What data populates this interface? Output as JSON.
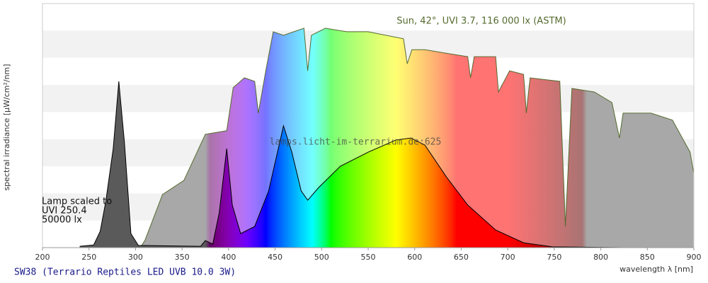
{
  "chart_data": {
    "type": "area",
    "title": "SW38 (Terrario Reptiles LED UVB 10.0 3W)",
    "watermark": "lamps.licht-im-terrarium.de:625",
    "x_label": "wavelength λ [nm]",
    "y_label": "spectral irradiance [µW/cm²/nm]",
    "annotations": [
      "Lamp scaled to",
      "UVI 250.4",
      "50000 lx"
    ],
    "xlim": [
      200,
      900
    ],
    "xticks": [
      200,
      250,
      300,
      350,
      400,
      450,
      500,
      550,
      600,
      650,
      700,
      750,
      800,
      850,
      900
    ],
    "ylim": [
      0,
      9
    ],
    "series": [
      {
        "name": "Sun, 42°, UVI 3.7, 116 000 lx (ASTM)",
        "color": "#556b2f",
        "x": [
          305,
          310,
          329,
          352,
          375,
          398,
          405,
          417,
          428,
          432,
          440,
          448,
          459,
          470,
          481,
          485,
          489,
          504,
          527,
          550,
          588,
          592,
          597,
          611,
          634,
          657,
          660,
          664,
          687,
          690,
          702,
          717,
          720,
          724,
          756,
          762,
          769,
          793,
          812,
          820,
          824,
          831,
          854,
          877,
          896,
          900
        ],
        "values": [
          0,
          0.26,
          1.96,
          2.48,
          4.18,
          4.31,
          5.9,
          6.26,
          6.13,
          4.96,
          6.52,
          7.96,
          7.83,
          7.96,
          8.09,
          6.52,
          7.83,
          8.09,
          7.96,
          7.96,
          7.7,
          6.78,
          7.3,
          7.3,
          7.17,
          7.04,
          6.26,
          7.04,
          7.04,
          5.74,
          6.52,
          6.39,
          4.96,
          6.26,
          6.13,
          0.78,
          5.87,
          5.74,
          5.35,
          4.04,
          4.96,
          4.96,
          4.96,
          4.7,
          3.52,
          2.74
        ]
      },
      {
        "color": "#000000",
        "x": [
          240,
          255,
          262,
          268,
          276,
          282,
          288,
          295,
          303,
          370,
          375,
          383,
          390,
          398,
          404,
          413,
          428,
          443,
          459,
          468,
          478,
          485,
          497,
          520,
          550,
          580,
          596,
          611,
          634,
          657,
          687,
          717,
          748,
          824
        ],
        "values": [
          0.05,
          0.1,
          0.6,
          1.7,
          3.65,
          6.13,
          3.9,
          0.52,
          0.08,
          0.05,
          0.26,
          0.13,
          1.3,
          3.65,
          1.57,
          0.52,
          0.78,
          2.09,
          4.49,
          3.52,
          2.09,
          1.75,
          2.22,
          3.0,
          3.52,
          3.97,
          4.04,
          3.78,
          2.61,
          1.57,
          0.65,
          0.18,
          0.03,
          0
        ]
      }
    ]
  }
}
